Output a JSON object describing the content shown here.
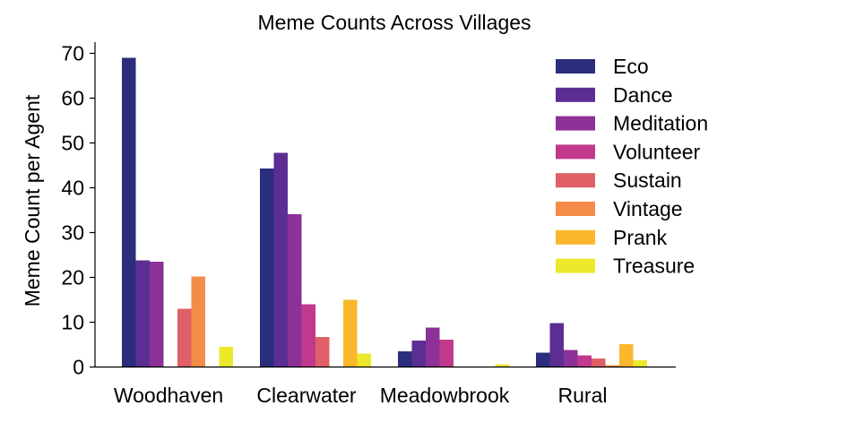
{
  "chart_data": {
    "type": "bar",
    "title": "Meme Counts Across Villages",
    "xlabel": "",
    "ylabel": "Meme Count per Agent",
    "ylim": [
      0,
      72
    ],
    "yticks": [
      0,
      10,
      20,
      30,
      40,
      50,
      60,
      70
    ],
    "grid": false,
    "legend_position": "top-right",
    "categories": [
      "Woodhaven",
      "Clearwater",
      "Meadowbrook",
      "Rural"
    ],
    "series": [
      {
        "name": "Eco",
        "color": "#2b2d7d",
        "values": [
          69,
          44.3,
          3.5,
          3.2
        ]
      },
      {
        "name": "Dance",
        "color": "#5c2e93",
        "values": [
          23.8,
          47.8,
          5.9,
          9.8
        ]
      },
      {
        "name": "Meditation",
        "color": "#8c3198",
        "values": [
          23.5,
          34.1,
          8.8,
          3.8
        ]
      },
      {
        "name": "Volunteer",
        "color": "#c0398c",
        "values": [
          0,
          14,
          6.1,
          2.6
        ]
      },
      {
        "name": "Sustain",
        "color": "#e06068",
        "values": [
          13,
          6.7,
          0,
          1.9
        ]
      },
      {
        "name": "Vintage",
        "color": "#f58b48",
        "values": [
          20.2,
          0,
          0,
          0.4
        ]
      },
      {
        "name": "Prank",
        "color": "#fab72c",
        "values": [
          0,
          15,
          0,
          5.1
        ]
      },
      {
        "name": "Treasure",
        "color": "#ece82b",
        "values": [
          4.5,
          3,
          0.6,
          1.5
        ]
      }
    ]
  }
}
